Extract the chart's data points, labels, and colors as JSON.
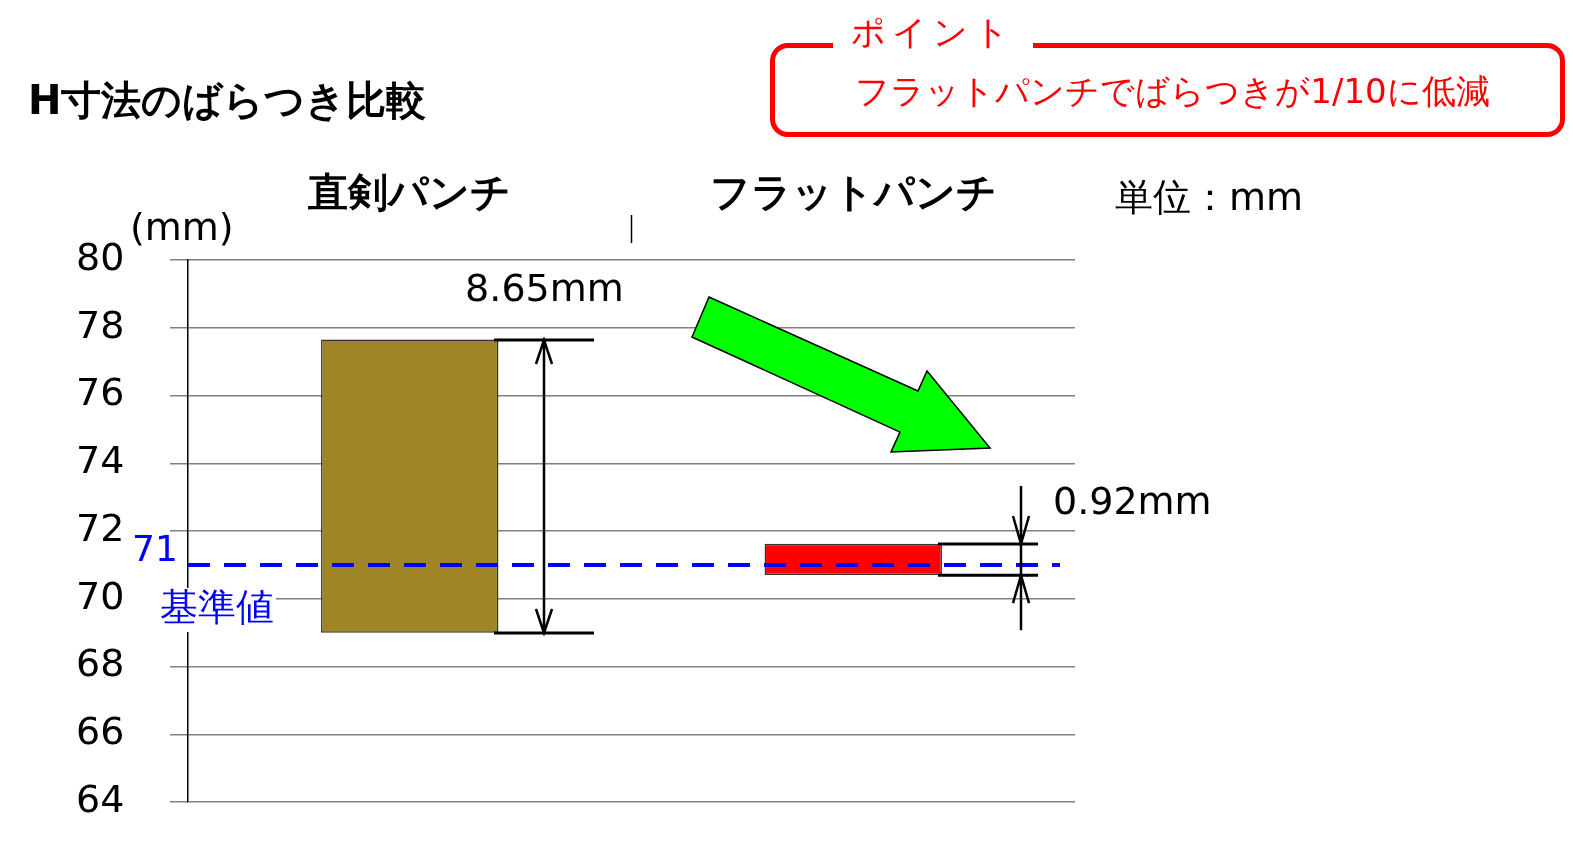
{
  "chart_data": {
    "type": "bar",
    "title": "H寸法のばらつき比較",
    "ylabel": "(mm)",
    "categories": [
      "直剣パンチ",
      "フラットパンチ"
    ],
    "values": [
      8.65,
      0.92
    ],
    "base": [
      69.0,
      70.7
    ],
    "colors": [
      "#a08527",
      "#ff0000"
    ],
    "value_labels": [
      "8.65mm",
      "0.92mm"
    ],
    "ylim": [
      64,
      80
    ],
    "yticks": [
      64,
      66,
      68,
      70,
      72,
      74,
      76,
      78,
      80
    ],
    "grid": "y",
    "legend": false,
    "ref_lines": [
      {
        "axis": "y",
        "value": 71,
        "label": "基準値",
        "color": "#0000ff",
        "line_style": "dashed"
      }
    ],
    "annotations": [
      "単位：mm",
      "ポイント",
      "フラットパンチでばらつきが1/10に低減",
      "71"
    ]
  }
}
